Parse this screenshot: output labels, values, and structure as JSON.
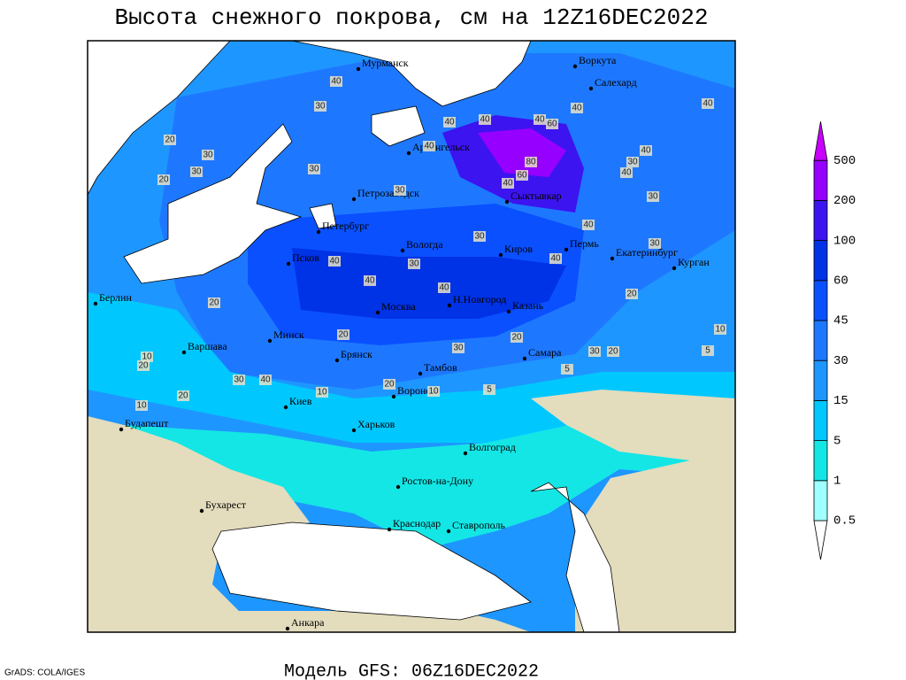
{
  "title": "Высота снежного покрова, см на 12Z16DEC2022",
  "subtitle": "Модель GFS: 06Z16DEC2022",
  "credit": "GrADS: COLA/IGES",
  "cities": [
    "Мурманск",
    "Воркута",
    "Салехард",
    "Архангельск",
    "Сыктывкар",
    "Петрозаводск",
    "Петербург",
    "Вологда",
    "Киров",
    "Пермь",
    "Екатеринбург",
    "Курган",
    "Псков",
    "Н.Новгород",
    "Казань",
    "Москва",
    "Берлин",
    "Варшава",
    "Минск",
    "Брянск",
    "Тамбов",
    "Самара",
    "Киев",
    "Воронеж",
    "Будапешт",
    "Харьков",
    "Волгоград",
    "Ростов-на-Дону",
    "Бухарест",
    "Краснодар",
    "Ставрополь",
    "Анкара"
  ],
  "contour_labels": [
    40,
    30,
    20,
    30,
    30,
    20,
    30,
    30,
    40,
    40,
    60,
    80,
    60,
    40,
    40,
    40,
    40,
    40,
    30,
    40,
    40,
    30,
    40,
    30,
    30,
    40,
    40,
    30,
    40,
    40,
    20,
    20,
    20,
    30,
    20,
    30,
    20,
    10,
    5,
    10,
    20,
    30,
    40,
    20,
    10,
    10,
    5,
    5,
    20,
    10
  ],
  "legend": {
    "levels": [
      0.5,
      1,
      5,
      15,
      30,
      45,
      60,
      100,
      200,
      500
    ],
    "colors": [
      "#ffffff",
      "#a0ffff",
      "#14e6e6",
      "#00c8ff",
      "#1e96ff",
      "#1e78ff",
      "#0a50ff",
      "#0032e6",
      "#3c14f0",
      "#9600ff",
      "#c800ff"
    ]
  }
}
